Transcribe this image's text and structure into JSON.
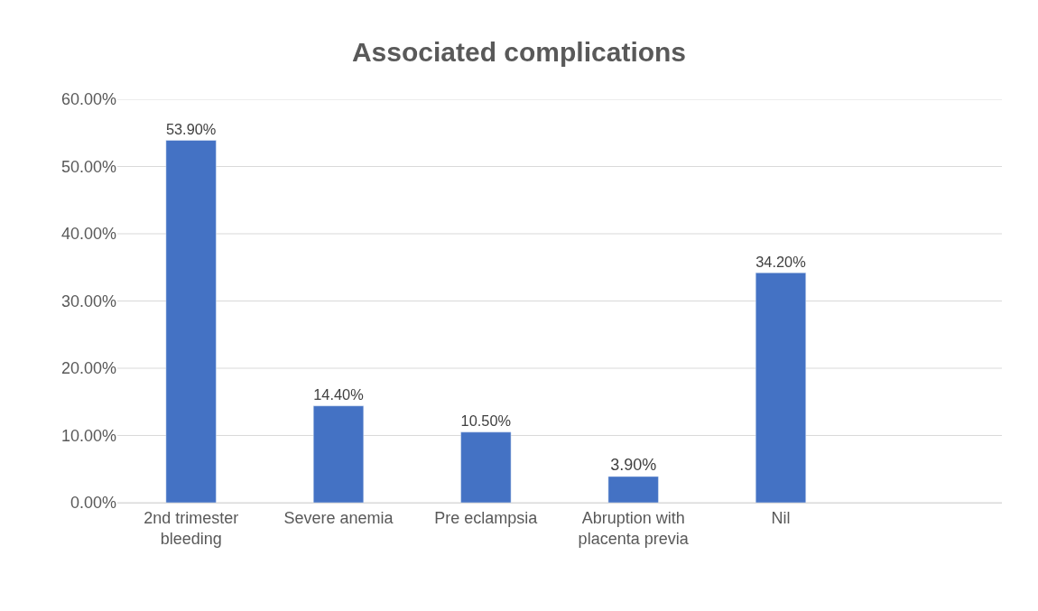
{
  "chart_data": {
    "type": "bar",
    "title": "Associated complications",
    "categories": [
      "2nd trimester bleeding",
      "Severe anemia",
      "Pre eclampsia",
      "Abruption with placenta previa",
      "Nil",
      null
    ],
    "values": [
      53.9,
      14.4,
      10.5,
      3.9,
      34.2,
      null
    ],
    "value_labels": [
      "53.90%",
      "14.40%",
      "10.50%",
      "3.90%",
      "34.20%",
      null
    ],
    "color": "#4472c4",
    "ylim": [
      0,
      60
    ],
    "yticks": [
      {
        "value": 0,
        "label": "0.00%"
      },
      {
        "value": 10,
        "label": "10.00%"
      },
      {
        "value": 20,
        "label": "20.00%"
      },
      {
        "value": 30,
        "label": "30.00%"
      },
      {
        "value": 40,
        "label": "40.00%"
      },
      {
        "value": 50,
        "label": "50.00%"
      },
      {
        "value": 60,
        "label": "60.00%"
      }
    ],
    "grid": "y"
  }
}
